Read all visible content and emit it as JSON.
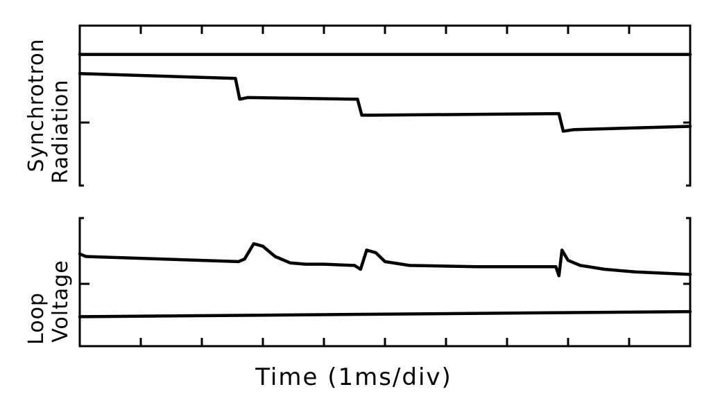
{
  "chart_data": [
    {
      "type": "line",
      "ylabel_lines": [
        "Synchrotron",
        "Radiation"
      ],
      "x_divisions": 10,
      "grid": false,
      "series": [
        {
          "x": [
            0,
            0.1,
            10
          ],
          "y": [
            0.82,
            0.82,
            0.82
          ]
        },
        {
          "x": [
            0,
            2.55,
            2.62,
            2.75,
            4.55,
            4.62,
            4.8,
            7.85,
            7.92,
            8.1,
            10
          ],
          "y": [
            0.7,
            0.67,
            0.54,
            0.55,
            0.54,
            0.44,
            0.44,
            0.45,
            0.34,
            0.35,
            0.37
          ]
        }
      ]
    },
    {
      "type": "line",
      "ylabel_lines": [
        "Loop",
        "Voltage"
      ],
      "x_divisions": 10,
      "grid": false,
      "series": [
        {
          "x": [
            0,
            0.1,
            2.6,
            2.7,
            2.85,
            3.0,
            3.2,
            3.45,
            3.7,
            4.0,
            4.5,
            4.6,
            4.7,
            4.85,
            5.0,
            5.4,
            6.5,
            7.8,
            7.85,
            7.9,
            8.0,
            8.2,
            8.6,
            9.1,
            10
          ],
          "y": [
            0.72,
            0.7,
            0.66,
            0.68,
            0.8,
            0.78,
            0.7,
            0.65,
            0.64,
            0.64,
            0.63,
            0.6,
            0.75,
            0.73,
            0.66,
            0.63,
            0.62,
            0.62,
            0.55,
            0.75,
            0.67,
            0.63,
            0.6,
            0.58,
            0.56
          ]
        },
        {
          "x": [
            0,
            0.1,
            10
          ],
          "y": [
            0.23,
            0.23,
            0.27
          ]
        }
      ]
    }
  ],
  "xlabel": "Time (1ms/div)"
}
